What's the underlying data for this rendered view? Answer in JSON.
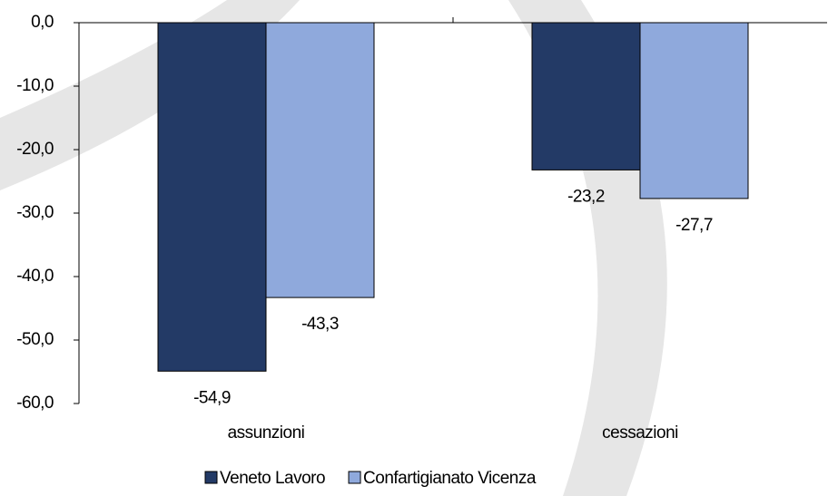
{
  "chart_data": {
    "type": "bar",
    "categories": [
      "assunzioni",
      "cessazioni"
    ],
    "series": [
      {
        "name": "Veneto Lavoro",
        "color": "#233a66",
        "values": [
          -54.9,
          -23.2
        ],
        "value_labels": [
          "-54,9",
          "-23,2"
        ]
      },
      {
        "name": "Confartigianato Vicenza",
        "color": "#8fa9dc",
        "values": [
          -43.3,
          -27.7
        ],
        "value_labels": [
          "-43,3",
          "-27,7"
        ]
      }
    ],
    "ylim": [
      -60,
      0
    ],
    "yticks": [
      {
        "value": 0,
        "label": "0,0"
      },
      {
        "value": -10,
        "label": "-10,0"
      },
      {
        "value": -20,
        "label": "-20,0"
      },
      {
        "value": -30,
        "label": "-30,0"
      },
      {
        "value": -40,
        "label": "-40,0"
      },
      {
        "value": -50,
        "label": "-50,0"
      },
      {
        "value": -60,
        "label": "-60,0"
      }
    ],
    "legend": "bottom"
  }
}
